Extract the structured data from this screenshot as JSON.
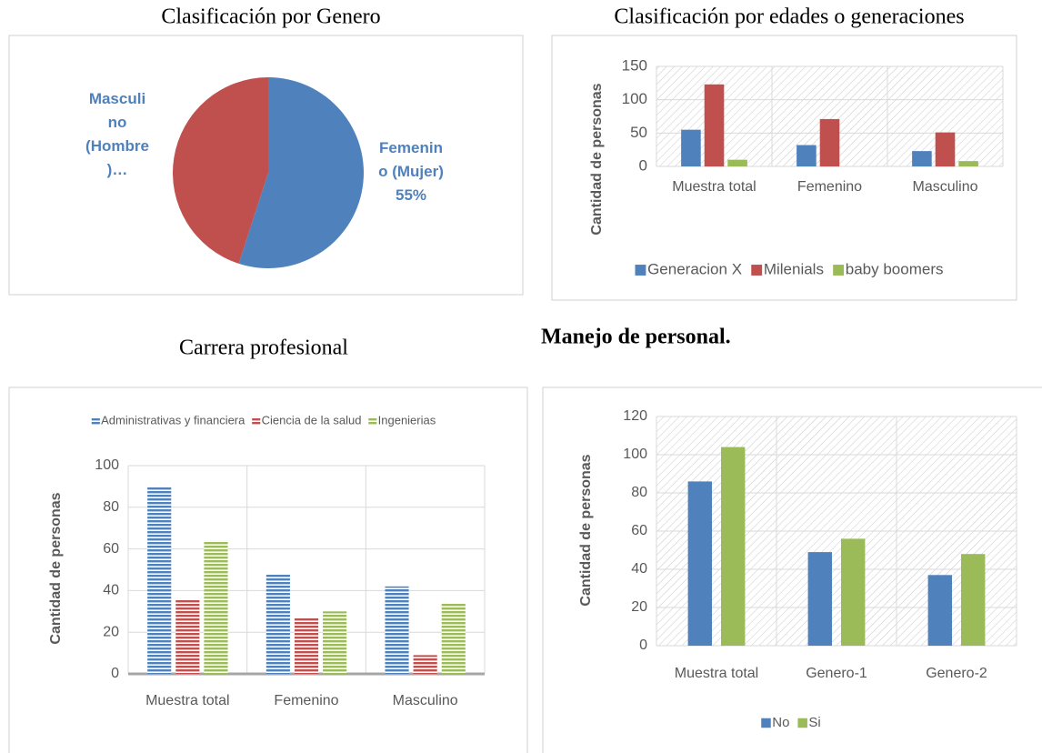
{
  "chart_data": [
    {
      "type": "pie",
      "title": "Clasificación por Genero",
      "categories": [
        "Femenino (Mujer)",
        "Masculino (Hombre)…"
      ],
      "values": [
        55,
        45
      ],
      "value_labels": [
        "55%",
        null
      ],
      "colors": [
        "#4f81bd",
        "#c0504d"
      ]
    },
    {
      "type": "bar",
      "title": "Clasificación por edades o generaciones",
      "y_label": "Cantidad de personas",
      "categories": [
        "Muestra total",
        "Femenino",
        "Masculino"
      ],
      "series": [
        {
          "name": "Generacion X",
          "color": "#4f81bd",
          "values": [
            55,
            32,
            23
          ]
        },
        {
          "name": "Milenials",
          "color": "#c0504d",
          "values": [
            123,
            71,
            51
          ]
        },
        {
          "name": "baby boomers",
          "color": "#9bbb59",
          "values": [
            10,
            0,
            8
          ]
        }
      ],
      "ylim": [
        0,
        150
      ],
      "yticks": [
        0,
        50,
        100,
        150
      ],
      "grid": true,
      "legend": "bottom",
      "striped": false
    },
    {
      "type": "bar",
      "title": "Carrera profesional",
      "y_label": "Cantidad de personas",
      "categories": [
        "Muestra total",
        "Femenino",
        "Masculino"
      ],
      "series": [
        {
          "name": "Administrativas y financiera",
          "color": "#4f81bd",
          "values": [
            90,
            48,
            42
          ]
        },
        {
          "name": "Ciencia de la salud",
          "color": "#c0504d",
          "values": [
            36,
            27,
            9
          ]
        },
        {
          "name": "Ingenierias",
          "color": "#9bbb59",
          "values": [
            64,
            30,
            34
          ]
        }
      ],
      "ylim": [
        0,
        100
      ],
      "yticks": [
        0,
        20,
        40,
        60,
        80,
        100
      ],
      "grid": true,
      "legend": "top",
      "striped": true
    },
    {
      "type": "bar",
      "title": "Manejo de personal.",
      "y_label": "Cantidad de personas",
      "categories": [
        "Muestra total",
        "Genero-1",
        "Genero-2"
      ],
      "series": [
        {
          "name": "No",
          "color": "#4f81bd",
          "values": [
            86,
            49,
            37
          ]
        },
        {
          "name": "Si",
          "color": "#9bbb59",
          "values": [
            104,
            56,
            48
          ]
        }
      ],
      "ylim": [
        0,
        120
      ],
      "yticks": [
        0,
        20,
        40,
        60,
        80,
        100,
        120
      ],
      "grid": true,
      "legend": "bottom",
      "striped": false
    }
  ]
}
